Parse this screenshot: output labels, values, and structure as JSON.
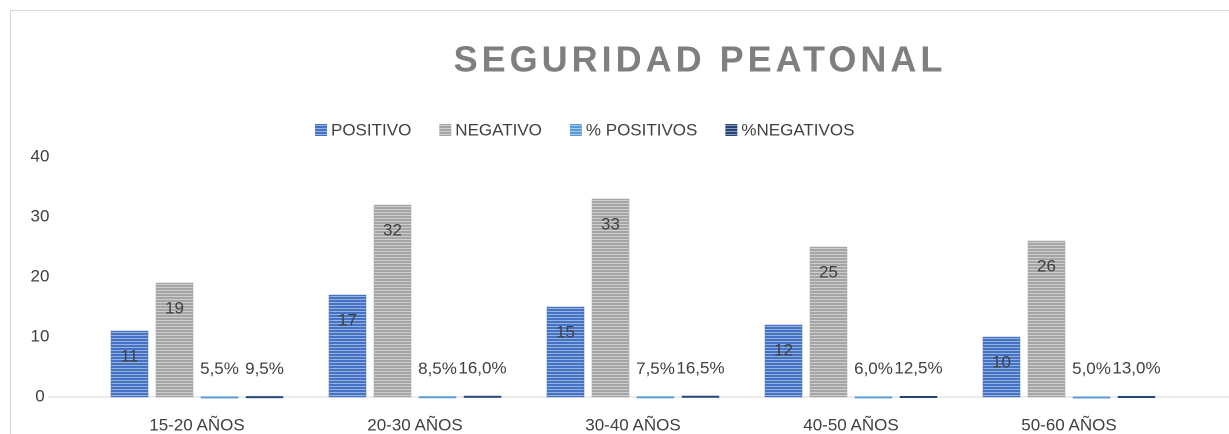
{
  "chart_data": {
    "type": "bar",
    "title": "SEGURIDAD PEATONAL",
    "categories": [
      "15-20 AÑOS",
      "20-30 AÑOS",
      "30-40 AÑOS",
      "40-50 AÑOS",
      "50-60 AÑOS"
    ],
    "series": [
      {
        "name": "POSITIVO",
        "color": "#4472c4",
        "values": [
          11,
          17,
          15,
          12,
          10
        ]
      },
      {
        "name": "NEGATIVO",
        "color": "#a5a5a5",
        "values": [
          19,
          32,
          33,
          25,
          26
        ]
      },
      {
        "name": "% POSITIVOS",
        "color": "#5b9bd5",
        "values": [
          0.055,
          0.085,
          0.075,
          0.06,
          0.05
        ],
        "value_labels": [
          "5,5%",
          "8,5%",
          "7,5%",
          "6,0%",
          "5,0%"
        ]
      },
      {
        "name": "%NEGATIVOS",
        "color": "#264478",
        "values": [
          0.095,
          0.16,
          0.165,
          0.125,
          0.13
        ],
        "value_labels": [
          "9,5%",
          "16,0%",
          "16,5%",
          "12,5%",
          "13,0%"
        ]
      }
    ],
    "ylim": [
      0,
      40
    ],
    "yticks": [
      0,
      10,
      20,
      30,
      40
    ],
    "grid": false,
    "legend": "top"
  }
}
